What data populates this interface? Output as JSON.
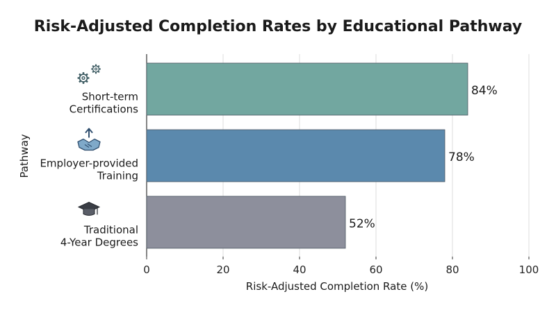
{
  "chart_data": {
    "type": "bar",
    "orientation": "horizontal",
    "title": "Risk-Adjusted Completion Rates by Educational Pathway",
    "xlabel": "Risk-Adjusted Completion Rate (%)",
    "ylabel": "Pathway",
    "xlim": [
      0,
      100
    ],
    "x_ticks": [
      0,
      20,
      40,
      60,
      80,
      100
    ],
    "grid": "vertical",
    "categories": [
      {
        "label_lines": [
          "Short-term",
          "Certifications"
        ],
        "value": 84,
        "value_label": "84%",
        "color": "#72a7a0",
        "icon": "gears-icon"
      },
      {
        "label_lines": [
          "Employer-provided",
          "Training"
        ],
        "value": 78,
        "value_label": "78%",
        "color": "#5b89ad",
        "icon": "handshake-icon"
      },
      {
        "label_lines": [
          "Traditional",
          "4-Year Degrees"
        ],
        "value": 52,
        "value_label": "52%",
        "color": "#8d8f9c",
        "icon": "graduation-cap-icon"
      }
    ]
  }
}
